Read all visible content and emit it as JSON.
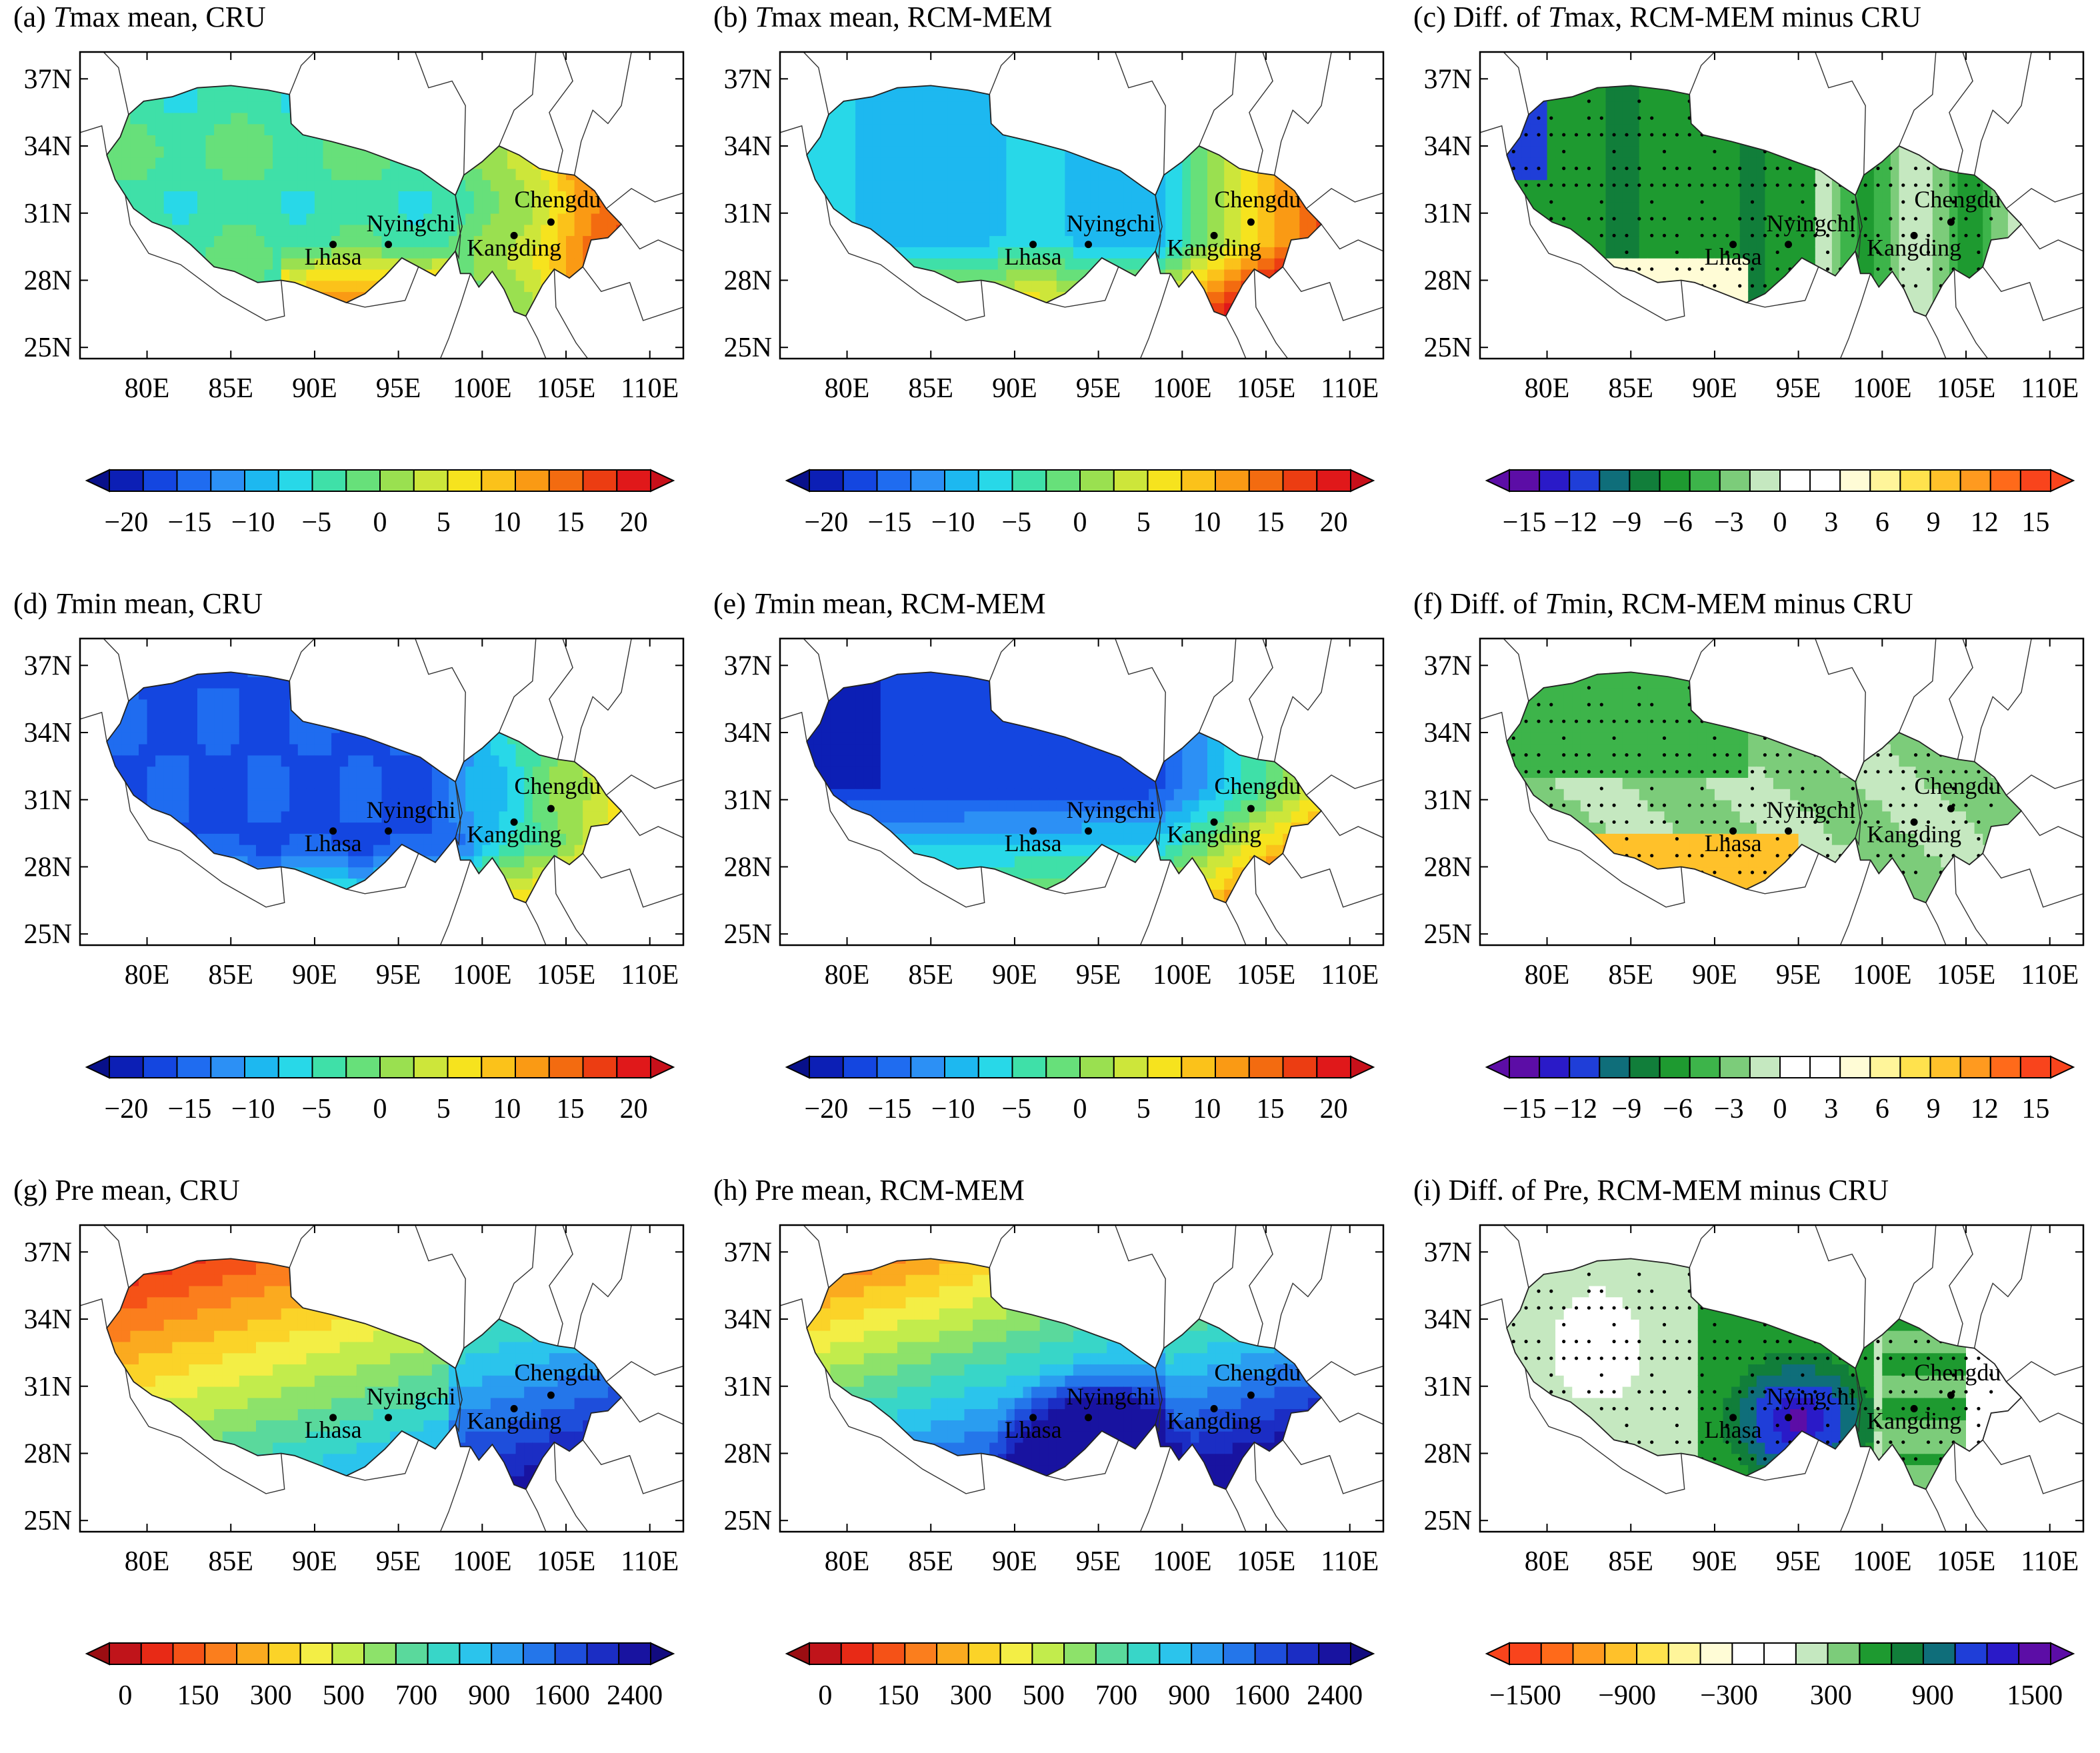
{
  "panels": [
    {
      "id": "a",
      "title_prefix": "(a) ",
      "title_var": "T",
      "title_rest": "max mean, CRU",
      "type": "temp",
      "source": "cru",
      "cb": "temp"
    },
    {
      "id": "b",
      "title_prefix": "(b) ",
      "title_var": "T",
      "title_rest": "max mean, RCM-MEM",
      "type": "temp",
      "source": "rcm",
      "cb": "temp"
    },
    {
      "id": "c",
      "title_prefix": "(c) Diff. of ",
      "title_var": "T",
      "title_rest": "max, RCM-MEM minus CRU",
      "type": "diff",
      "source": "diffmax",
      "cb": "diff"
    },
    {
      "id": "d",
      "title_prefix": "(d) ",
      "title_var": "T",
      "title_rest": "min mean, CRU",
      "type": "temp",
      "source": "cru",
      "cb": "temp"
    },
    {
      "id": "e",
      "title_prefix": "(e) ",
      "title_var": "T",
      "title_rest": "min mean, RCM-MEM",
      "type": "temp",
      "source": "rcm",
      "cb": "temp"
    },
    {
      "id": "f",
      "title_prefix": "(f) Diff. of ",
      "title_var": "T",
      "title_rest": "min, RCM-MEM minus CRU",
      "type": "diff",
      "source": "diffmin",
      "cb": "diff"
    },
    {
      "id": "g",
      "title_prefix": "(g) Pre mean, CRU",
      "title_var": "",
      "title_rest": "",
      "type": "pre",
      "source": "cru",
      "cb": "pre"
    },
    {
      "id": "h",
      "title_prefix": "(h) Pre mean, RCM-MEM",
      "title_var": "",
      "title_rest": "",
      "type": "pre",
      "source": "rcm",
      "cb": "pre"
    },
    {
      "id": "i",
      "title_prefix": "(i) Diff. of Pre, RCM-MEM minus CRU",
      "title_var": "",
      "title_rest": "",
      "type": "prediff",
      "source": "diffpre",
      "cb": "prediff"
    }
  ],
  "axes": {
    "lon_labels": [
      "80E",
      "85E",
      "90E",
      "95E",
      "100E",
      "105E",
      "110E"
    ],
    "lon_values": [
      80,
      85,
      90,
      95,
      100,
      105,
      110
    ],
    "lat_labels": [
      "25N",
      "28N",
      "31N",
      "34N",
      "37N"
    ],
    "lat_values": [
      25,
      28,
      31,
      34,
      37
    ],
    "lon_range": [
      76,
      112
    ],
    "lat_range": [
      24.5,
      38.2
    ]
  },
  "cities": [
    {
      "name": "Lhasa",
      "lon": 91.1,
      "lat": 29.6
    },
    {
      "name": "Nyingchi",
      "lon": 94.4,
      "lat": 29.6
    },
    {
      "name": "Kangding",
      "lon": 101.9,
      "lat": 30.0
    },
    {
      "name": "Chengdu",
      "lon": 104.1,
      "lat": 30.6
    }
  ],
  "colorbars": {
    "temp": {
      "labels": [
        "−20",
        "−15",
        "−10",
        "−5",
        "0",
        "5",
        "10",
        "15",
        "20"
      ],
      "colors": [
        "#0c1fb5",
        "#1446e0",
        "#1f6cf0",
        "#2c90f5",
        "#1db8f0",
        "#28d8e8",
        "#3fe0a8",
        "#67e07a",
        "#9ae050",
        "#cde63a",
        "#f6e31e",
        "#fbc21a",
        "#fa9a14",
        "#f36b10",
        "#ec3d12",
        "#e0181a"
      ],
      "left_end": "#08108a",
      "right_end": "#c8101a"
    },
    "diff": {
      "labels": [
        "−15",
        "−12",
        "−9",
        "−6",
        "−3",
        "0",
        "3",
        "6",
        "9",
        "12",
        "15"
      ],
      "colors": [
        "#5c0da6",
        "#2a1ac8",
        "#1f3ed8",
        "#0f6e7a",
        "#117e3a",
        "#1e9a30",
        "#3db44a",
        "#7ccc7a",
        "#c5e8c0",
        "#ffffff",
        "#ffffff",
        "#fffcd6",
        "#fff59a",
        "#ffe24d",
        "#ffc12a",
        "#ff9a1f",
        "#ff6a1a",
        "#f9441c"
      ],
      "left_end": "#5c0da6",
      "right_end": "#f9441c"
    },
    "pre": {
      "labels": [
        "0",
        "150",
        "300",
        "500",
        "700",
        "900",
        "1600",
        "2400"
      ],
      "colors": [
        "#c0141a",
        "#e82a16",
        "#f55217",
        "#fb7e1d",
        "#fbaa1f",
        "#fbd328",
        "#f3ee45",
        "#c2ec4c",
        "#8de26a",
        "#5ad99c",
        "#38d6c8",
        "#2bc4ec",
        "#2a9df0",
        "#2476ea",
        "#1e4edb",
        "#1b2dc4",
        "#1813a0"
      ],
      "left_end": "#9a0d12",
      "right_end": "#120b80"
    },
    "prediff": {
      "labels": [
        "−1500",
        "−900",
        "−300",
        "300",
        "900",
        "1500"
      ],
      "colors": [
        "#f9441c",
        "#ff6a1a",
        "#ff9a1f",
        "#ffc12a",
        "#ffe24d",
        "#fff59a",
        "#fffcd6",
        "#ffffff",
        "#ffffff",
        "#c5e8c0",
        "#7ccc7a",
        "#1e9a30",
        "#117e3a",
        "#0f6e7a",
        "#1f3ed8",
        "#2a1ac8",
        "#5c0da6"
      ],
      "left_end": "#f9441c",
      "right_end": "#5c0da6"
    }
  }
}
